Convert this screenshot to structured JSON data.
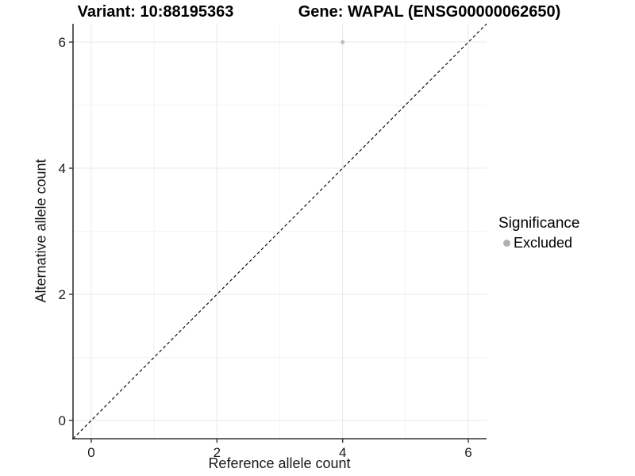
{
  "titles": {
    "left": "Variant: 10:88195363",
    "right": "Gene: WAPAL (ENSG00000062650)"
  },
  "chart_data": {
    "type": "scatter",
    "title_left": "Variant: 10:88195363",
    "title_right": "Gene: WAPAL (ENSG00000062650)",
    "xlabel": "Reference allele count",
    "ylabel": "Alternative allele count",
    "xlim": [
      -0.29,
      6.29
    ],
    "ylim": [
      -0.29,
      6.29
    ],
    "xticks": [
      0,
      2,
      4,
      6
    ],
    "yticks": [
      0,
      2,
      4,
      6
    ],
    "minor_xticks": [
      1,
      3,
      5
    ],
    "minor_yticks": [
      1,
      3,
      5
    ],
    "grid": "major and minor, light grey on white",
    "points": [
      {
        "x": 4,
        "y": 6,
        "significance": "Excluded"
      }
    ],
    "reference_line": {
      "style": "dashed",
      "slope": 1,
      "intercept": 0,
      "color": "#111111"
    },
    "legend": {
      "position": "right",
      "title": "Significance",
      "entries": [
        {
          "label": "Excluded",
          "marker": "circle",
          "color": "#b0b0b0"
        }
      ]
    },
    "colors": {
      "point": "#bdbdbd",
      "axis": "#333333",
      "tick": "#333333",
      "grid_major": "#e8e8e8",
      "grid_minor": "#f4f4f4",
      "text": "#1a1a1a"
    }
  }
}
